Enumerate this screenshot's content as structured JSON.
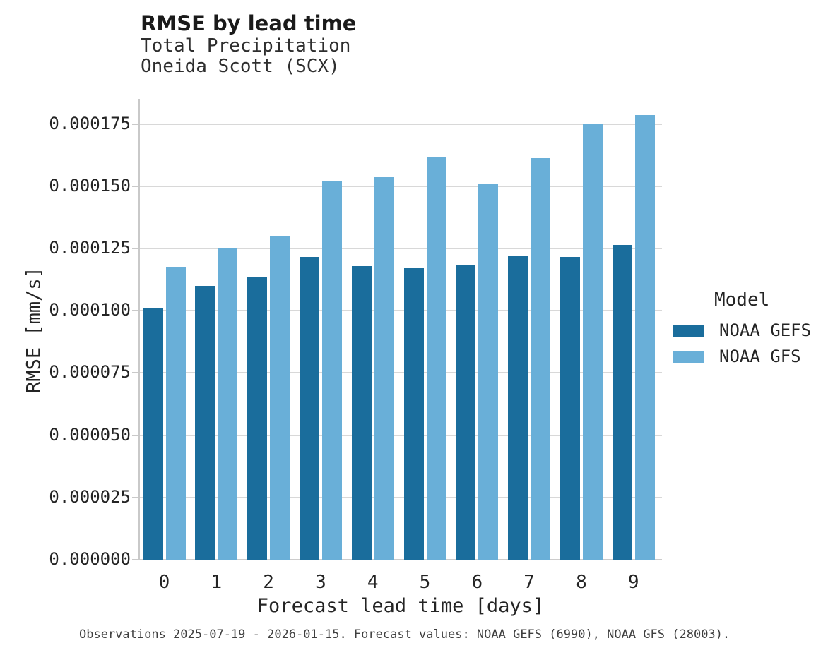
{
  "header": {
    "title": "RMSE by lead time",
    "subtitle_line1": "Total Precipitation",
    "subtitle_line2": "Oneida Scott (SCX)"
  },
  "chart_data": {
    "type": "bar",
    "title": "RMSE by lead time",
    "subtitle": [
      "Total Precipitation",
      "Oneida Scott (SCX)"
    ],
    "categories": [
      "0",
      "1",
      "2",
      "3",
      "4",
      "5",
      "6",
      "7",
      "8",
      "9"
    ],
    "series": [
      {
        "name": "NOAA GEFS",
        "color": "#1A6D9C",
        "values": [
          0.000101,
          0.00011,
          0.0001135,
          0.0001215,
          0.000118,
          0.000117,
          0.0001185,
          0.000122,
          0.0001215,
          0.0001263
        ]
      },
      {
        "name": "NOAA GFS",
        "color": "#69AFD8",
        "values": [
          0.0001175,
          0.000125,
          0.00013,
          0.0001518,
          0.0001535,
          0.0001615,
          0.0001512,
          0.0001613,
          0.0001748,
          0.0001787
        ]
      }
    ],
    "xlabel": "Forecast lead time [days]",
    "ylabel": "RMSE [mm/s]",
    "ylim": [
      0,
      0.000185
    ],
    "yticks": [
      0.0,
      2.5e-05,
      5e-05,
      7.5e-05,
      0.0001,
      0.000125,
      0.00015,
      0.000175
    ],
    "ytick_labels": [
      "0.000000",
      "0.000025",
      "0.000050",
      "0.000075",
      "0.000100",
      "0.000125",
      "0.000150",
      "0.000175"
    ],
    "legend_title": "Model",
    "legend_position": "right",
    "grid": "horizontal"
  },
  "caption": "Observations 2025-07-19 - 2026-01-15. Forecast values: NOAA GEFS (6990), NOAA GFS (28003)."
}
